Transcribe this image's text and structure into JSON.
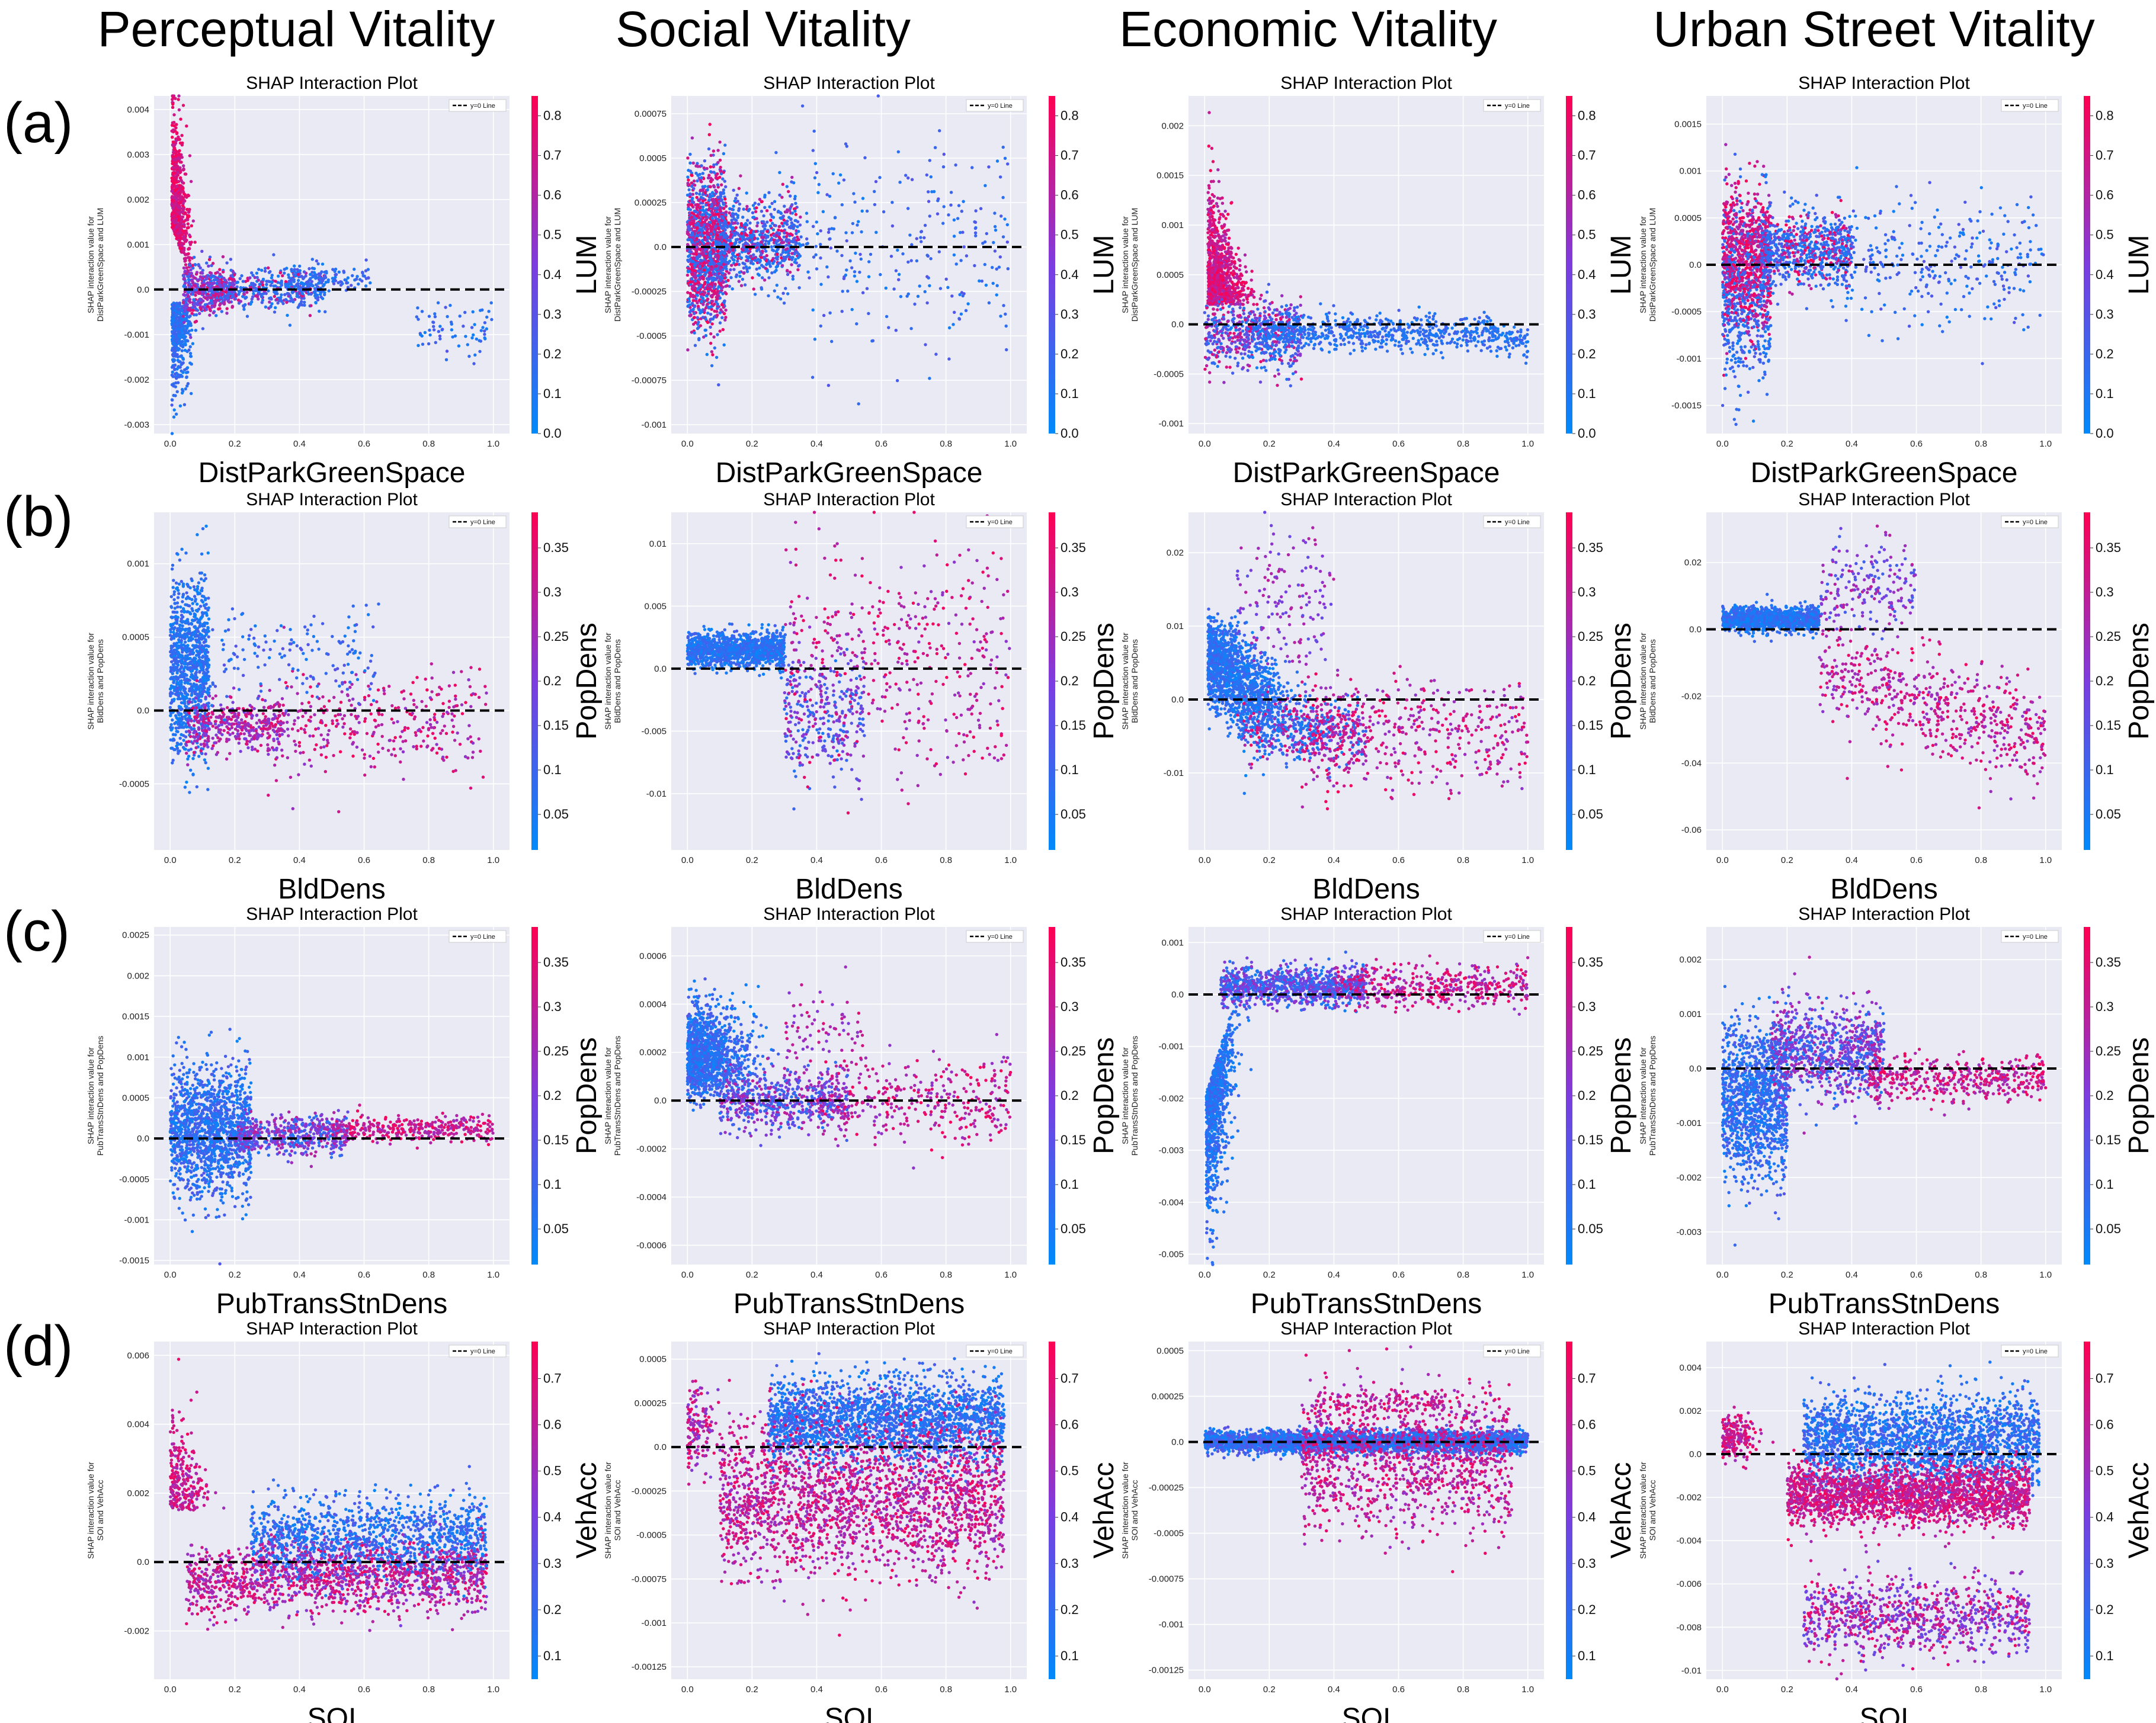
{
  "figure": {
    "column_titles": [
      "Perceptual Vitality",
      "Social Vitality",
      "Economic Vitality",
      "Urban Street Vitality"
    ],
    "row_labels": [
      "(a)",
      "(b)",
      "(c)",
      "(d)"
    ]
  },
  "chart_data": [
    {
      "id": "a1",
      "type": "scatter",
      "title": "SHAP Interaction Plot",
      "xlabel": "DistParkGreenSpace",
      "ylabel": "SHAP interaction value for\nDistParkGreenSpace and LUM",
      "color_feature": "LUM",
      "legend": "y=0 Line",
      "xlim": [
        -0.05,
        1.05
      ],
      "ylim": [
        -0.0032,
        0.0043
      ],
      "yticks": [
        -0.003,
        -0.002,
        -0.001,
        0.0,
        0.001,
        0.002,
        0.003,
        0.004
      ],
      "xticks": [
        0.0,
        0.2,
        0.4,
        0.6,
        0.8,
        1.0
      ],
      "colorbar": {
        "range": [
          0.0,
          0.85
        ],
        "ticks": [
          0.0,
          0.1,
          0.2,
          0.3,
          0.4,
          0.5,
          0.6,
          0.7,
          0.8
        ]
      },
      "pattern": "a_perc"
    },
    {
      "id": "a2",
      "type": "scatter",
      "title": "SHAP Interaction Plot",
      "xlabel": "DistParkGreenSpace",
      "ylabel": "SHAP interaction value for\nDistParkGreenSpace and LUM",
      "color_feature": "LUM",
      "legend": "y=0 Line",
      "xlim": [
        -0.05,
        1.05
      ],
      "ylim": [
        -0.00105,
        0.00085
      ],
      "yticks": [
        -0.001,
        -0.00075,
        -0.0005,
        -0.00025,
        0.0,
        0.00025,
        0.0005,
        0.00075
      ],
      "xticks": [
        0.0,
        0.2,
        0.4,
        0.6,
        0.8,
        1.0
      ],
      "colorbar": {
        "range": [
          0.0,
          0.85
        ],
        "ticks": [
          0.0,
          0.1,
          0.2,
          0.3,
          0.4,
          0.5,
          0.6,
          0.7,
          0.8
        ]
      },
      "pattern": "a_soc"
    },
    {
      "id": "a3",
      "type": "scatter",
      "title": "SHAP Interaction Plot",
      "xlabel": "DistParkGreenSpace",
      "ylabel": "SHAP interaction value for\nDistParkGreenSpace and LUM",
      "color_feature": "LUM",
      "legend": "y=0 Line",
      "xlim": [
        -0.05,
        1.05
      ],
      "ylim": [
        -0.0011,
        0.0023
      ],
      "yticks": [
        -0.001,
        -0.0005,
        0.0,
        0.0005,
        0.001,
        0.0015,
        0.002
      ],
      "xticks": [
        0.0,
        0.2,
        0.4,
        0.6,
        0.8,
        1.0
      ],
      "colorbar": {
        "range": [
          0.0,
          0.85
        ],
        "ticks": [
          0.0,
          0.1,
          0.2,
          0.3,
          0.4,
          0.5,
          0.6,
          0.7,
          0.8
        ]
      },
      "pattern": "a_eco"
    },
    {
      "id": "a4",
      "type": "scatter",
      "title": "SHAP Interaction Plot",
      "xlabel": "DistParkGreenSpace",
      "ylabel": "SHAP interaction value for\nDistParkGreenSpace and LUM",
      "color_feature": "LUM",
      "legend": "y=0 Line",
      "xlim": [
        -0.05,
        1.05
      ],
      "ylim": [
        -0.0018,
        0.0018
      ],
      "yticks": [
        -0.0015,
        -0.001,
        -0.0005,
        0.0,
        0.0005,
        0.001,
        0.0015
      ],
      "xticks": [
        0.0,
        0.2,
        0.4,
        0.6,
        0.8,
        1.0
      ],
      "colorbar": {
        "range": [
          0.0,
          0.85
        ],
        "ticks": [
          0.0,
          0.1,
          0.2,
          0.3,
          0.4,
          0.5,
          0.6,
          0.7,
          0.8
        ]
      },
      "pattern": "a_urb"
    },
    {
      "id": "b1",
      "type": "scatter",
      "title": "SHAP Interaction Plot",
      "xlabel": "BldDens",
      "ylabel": "SHAP interaction value for\nBldDens and PopDens",
      "color_feature": "PopDens",
      "legend": "y=0 Line",
      "xlim": [
        -0.05,
        1.05
      ],
      "ylim": [
        -0.00095,
        0.00135
      ],
      "yticks": [
        -0.0005,
        0.0,
        0.0005,
        0.001
      ],
      "xticks": [
        0.0,
        0.2,
        0.4,
        0.6,
        0.8,
        1.0
      ],
      "colorbar": {
        "range": [
          0.01,
          0.39
        ],
        "ticks": [
          0.05,
          0.1,
          0.15,
          0.2,
          0.25,
          0.3,
          0.35
        ]
      },
      "pattern": "b_perc"
    },
    {
      "id": "b2",
      "type": "scatter",
      "title": "SHAP Interaction Plot",
      "xlabel": "BldDens",
      "ylabel": "SHAP interaction value for\nBldDens and PopDens",
      "color_feature": "PopDens",
      "legend": "y=0 Line",
      "xlim": [
        -0.05,
        1.05
      ],
      "ylim": [
        -0.0145,
        0.0125
      ],
      "yticks": [
        -0.01,
        -0.005,
        0.0,
        0.005,
        0.01
      ],
      "xticks": [
        0.0,
        0.2,
        0.4,
        0.6,
        0.8,
        1.0
      ],
      "colorbar": {
        "range": [
          0.01,
          0.39
        ],
        "ticks": [
          0.05,
          0.1,
          0.15,
          0.2,
          0.25,
          0.3,
          0.35
        ]
      },
      "pattern": "b_soc"
    },
    {
      "id": "b3",
      "type": "scatter",
      "title": "SHAP Interaction Plot",
      "xlabel": "BldDens",
      "ylabel": "SHAP interaction value for\nBldDens and PopDens",
      "color_feature": "PopDens",
      "legend": "y=0 Line",
      "xlim": [
        -0.05,
        1.05
      ],
      "ylim": [
        -0.0205,
        0.0255
      ],
      "yticks": [
        -0.01,
        0.0,
        0.01,
        0.02
      ],
      "xticks": [
        0.0,
        0.2,
        0.4,
        0.6,
        0.8,
        1.0
      ],
      "colorbar": {
        "range": [
          0.01,
          0.39
        ],
        "ticks": [
          0.05,
          0.1,
          0.15,
          0.2,
          0.25,
          0.3,
          0.35
        ]
      },
      "pattern": "b_eco"
    },
    {
      "id": "b4",
      "type": "scatter",
      "title": "SHAP Interaction Plot",
      "xlabel": "BldDens",
      "ylabel": "SHAP interaction value for\nBldDens and PopDens",
      "color_feature": "PopDens",
      "legend": "y=0 Line",
      "xlim": [
        -0.05,
        1.05
      ],
      "ylim": [
        -0.066,
        0.035
      ],
      "yticks": [
        -0.06,
        -0.04,
        -0.02,
        0.0,
        0.02
      ],
      "xticks": [
        0.0,
        0.2,
        0.4,
        0.6,
        0.8,
        1.0
      ],
      "colorbar": {
        "range": [
          0.01,
          0.39
        ],
        "ticks": [
          0.05,
          0.1,
          0.15,
          0.2,
          0.25,
          0.3,
          0.35
        ]
      },
      "pattern": "b_urb"
    },
    {
      "id": "c1",
      "type": "scatter",
      "title": "SHAP Interaction Plot",
      "xlabel": "PubTransStnDens",
      "ylabel": "SHAP interaction value for\nPubTransStnDens and PopDens",
      "color_feature": "PopDens",
      "legend": "y=0 Line",
      "xlim": [
        -0.05,
        1.05
      ],
      "ylim": [
        -0.00155,
        0.0026
      ],
      "yticks": [
        -0.0015,
        -0.001,
        -0.0005,
        0.0,
        0.0005,
        0.001,
        0.0015,
        0.002,
        0.0025
      ],
      "xticks": [
        0.0,
        0.2,
        0.4,
        0.6,
        0.8,
        1.0
      ],
      "colorbar": {
        "range": [
          0.01,
          0.39
        ],
        "ticks": [
          0.05,
          0.1,
          0.15,
          0.2,
          0.25,
          0.3,
          0.35
        ]
      },
      "pattern": "c_perc"
    },
    {
      "id": "c2",
      "type": "scatter",
      "title": "SHAP Interaction Plot",
      "xlabel": "PubTransStnDens",
      "ylabel": "SHAP interaction value for\nPubTransStnDens and PopDens",
      "color_feature": "PopDens",
      "legend": "y=0 Line",
      "xlim": [
        -0.05,
        1.05
      ],
      "ylim": [
        -0.00068,
        0.00072
      ],
      "yticks": [
        -0.0006,
        -0.0004,
        -0.0002,
        0.0,
        0.0002,
        0.0004,
        0.0006
      ],
      "xticks": [
        0.0,
        0.2,
        0.4,
        0.6,
        0.8,
        1.0
      ],
      "colorbar": {
        "range": [
          0.01,
          0.39
        ],
        "ticks": [
          0.05,
          0.1,
          0.15,
          0.2,
          0.25,
          0.3,
          0.35
        ]
      },
      "pattern": "c_soc"
    },
    {
      "id": "c3",
      "type": "scatter",
      "title": "SHAP Interaction Plot",
      "xlabel": "PubTransStnDens",
      "ylabel": "SHAP interaction value for\nPubTransStnDens and PopDens",
      "color_feature": "PopDens",
      "legend": "y=0 Line",
      "xlim": [
        -0.05,
        1.05
      ],
      "ylim": [
        -0.0052,
        0.0013
      ],
      "yticks": [
        -0.005,
        -0.004,
        -0.003,
        -0.002,
        -0.001,
        0.0,
        0.001
      ],
      "xticks": [
        0.0,
        0.2,
        0.4,
        0.6,
        0.8,
        1.0
      ],
      "colorbar": {
        "range": [
          0.01,
          0.39
        ],
        "ticks": [
          0.05,
          0.1,
          0.15,
          0.2,
          0.25,
          0.3,
          0.35
        ]
      },
      "pattern": "c_eco"
    },
    {
      "id": "c4",
      "type": "scatter",
      "title": "SHAP Interaction Plot",
      "xlabel": "PubTransStnDens",
      "ylabel": "SHAP interaction value for\nPubTransStnDens and PopDens",
      "color_feature": "PopDens",
      "legend": "y=0 Line",
      "xlim": [
        -0.05,
        1.05
      ],
      "ylim": [
        -0.0036,
        0.0026
      ],
      "yticks": [
        -0.003,
        -0.002,
        -0.001,
        0.0,
        0.001,
        0.002
      ],
      "xticks": [
        0.0,
        0.2,
        0.4,
        0.6,
        0.8,
        1.0
      ],
      "colorbar": {
        "range": [
          0.01,
          0.39
        ],
        "ticks": [
          0.05,
          0.1,
          0.15,
          0.2,
          0.25,
          0.3,
          0.35
        ]
      },
      "pattern": "c_urb"
    },
    {
      "id": "d1",
      "type": "scatter",
      "title": "SHAP Interaction Plot",
      "xlabel": "SOI",
      "ylabel": "SHAP interaction value for\nSOI and VehAcc",
      "color_feature": "VehAcc",
      "legend": "y=0 Line",
      "xlim": [
        -0.05,
        1.05
      ],
      "ylim": [
        -0.0034,
        0.0064
      ],
      "yticks": [
        -0.002,
        0.0,
        0.002,
        0.004,
        0.006
      ],
      "xticks": [
        0.0,
        0.2,
        0.4,
        0.6,
        0.8,
        1.0
      ],
      "colorbar": {
        "range": [
          0.05,
          0.78
        ],
        "ticks": [
          0.1,
          0.2,
          0.3,
          0.4,
          0.5,
          0.6,
          0.7
        ]
      },
      "pattern": "d_perc"
    },
    {
      "id": "d2",
      "type": "scatter",
      "title": "SHAP Interaction Plot",
      "xlabel": "SOI",
      "ylabel": "SHAP interaction value for\nSOI and VehAcc",
      "color_feature": "VehAcc",
      "legend": "y=0 Line",
      "xlim": [
        -0.05,
        1.05
      ],
      "ylim": [
        -0.00132,
        0.0006
      ],
      "yticks": [
        -0.00125,
        -0.001,
        -0.00075,
        -0.0005,
        -0.00025,
        0.0,
        0.00025,
        0.0005
      ],
      "xticks": [
        0.0,
        0.2,
        0.4,
        0.6,
        0.8,
        1.0
      ],
      "colorbar": {
        "range": [
          0.05,
          0.78
        ],
        "ticks": [
          0.1,
          0.2,
          0.3,
          0.4,
          0.5,
          0.6,
          0.7
        ]
      },
      "pattern": "d_soc"
    },
    {
      "id": "d3",
      "type": "scatter",
      "title": "SHAP Interaction Plot",
      "xlabel": "SOI",
      "ylabel": "SHAP interaction value for\nSOI and VehAcc",
      "color_feature": "VehAcc",
      "legend": "y=0 Line",
      "xlim": [
        -0.05,
        1.05
      ],
      "ylim": [
        -0.0013,
        0.00055
      ],
      "yticks": [
        -0.00125,
        -0.001,
        -0.00075,
        -0.0005,
        -0.00025,
        0.0,
        0.00025,
        0.0005
      ],
      "xticks": [
        0.0,
        0.2,
        0.4,
        0.6,
        0.8,
        1.0
      ],
      "colorbar": {
        "range": [
          0.05,
          0.78
        ],
        "ticks": [
          0.1,
          0.2,
          0.3,
          0.4,
          0.5,
          0.6,
          0.7
        ]
      },
      "pattern": "d_eco"
    },
    {
      "id": "d4",
      "type": "scatter",
      "title": "SHAP Interaction Plot",
      "xlabel": "SOI",
      "ylabel": "SHAP interaction value for\nSOI and VehAcc",
      "color_feature": "VehAcc",
      "legend": "y=0 Line",
      "xlim": [
        -0.05,
        1.05
      ],
      "ylim": [
        -0.0104,
        0.0052
      ],
      "yticks": [
        -0.01,
        -0.008,
        -0.006,
        -0.004,
        -0.002,
        0.0,
        0.002,
        0.004
      ],
      "xticks": [
        0.0,
        0.2,
        0.4,
        0.6,
        0.8,
        1.0
      ],
      "colorbar": {
        "range": [
          0.05,
          0.78
        ],
        "ticks": [
          0.1,
          0.2,
          0.3,
          0.4,
          0.5,
          0.6,
          0.7
        ]
      },
      "pattern": "d_urb"
    }
  ]
}
